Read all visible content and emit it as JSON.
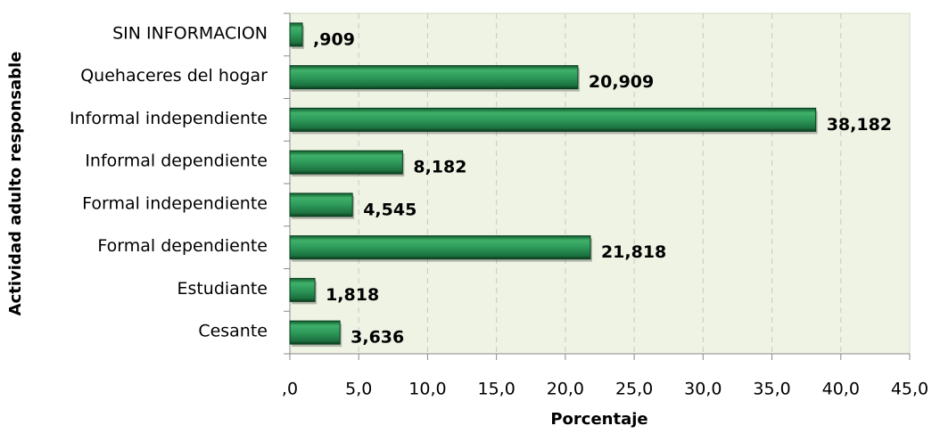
{
  "chart_data": {
    "type": "barh",
    "y_label": "Actividad adulto responsable",
    "x_label": "Porcentaje",
    "categories": [
      "SIN INFORMACION",
      "Quehaceres del hogar",
      "Informal independiente",
      "Informal dependiente",
      "Formal independiente",
      "Formal dependiente",
      "Estudiante",
      "Cesante"
    ],
    "values": [
      0.909,
      20.909,
      38.182,
      8.182,
      4.545,
      21.818,
      1.818,
      3.636
    ],
    "value_labels": [
      ",909",
      "20,909",
      "38,182",
      "8,182",
      "4,545",
      "21,818",
      "1,818",
      "3,636"
    ],
    "color": "#2e9a5a",
    "label_color": "#77933c",
    "xlim": [
      0,
      45
    ],
    "xticks": [
      {
        "value": 0,
        "label": ",0"
      },
      {
        "value": 5,
        "label": "5,0"
      },
      {
        "value": 10,
        "label": "10,0"
      },
      {
        "value": 15,
        "label": "15,0"
      },
      {
        "value": 20,
        "label": "20,0"
      },
      {
        "value": 25,
        "label": "25,0"
      },
      {
        "value": 30,
        "label": "30,0"
      },
      {
        "value": 35,
        "label": "35,0"
      },
      {
        "value": 40,
        "label": "40,0"
      },
      {
        "value": 45,
        "label": "45,0"
      }
    ],
    "grid": true
  }
}
